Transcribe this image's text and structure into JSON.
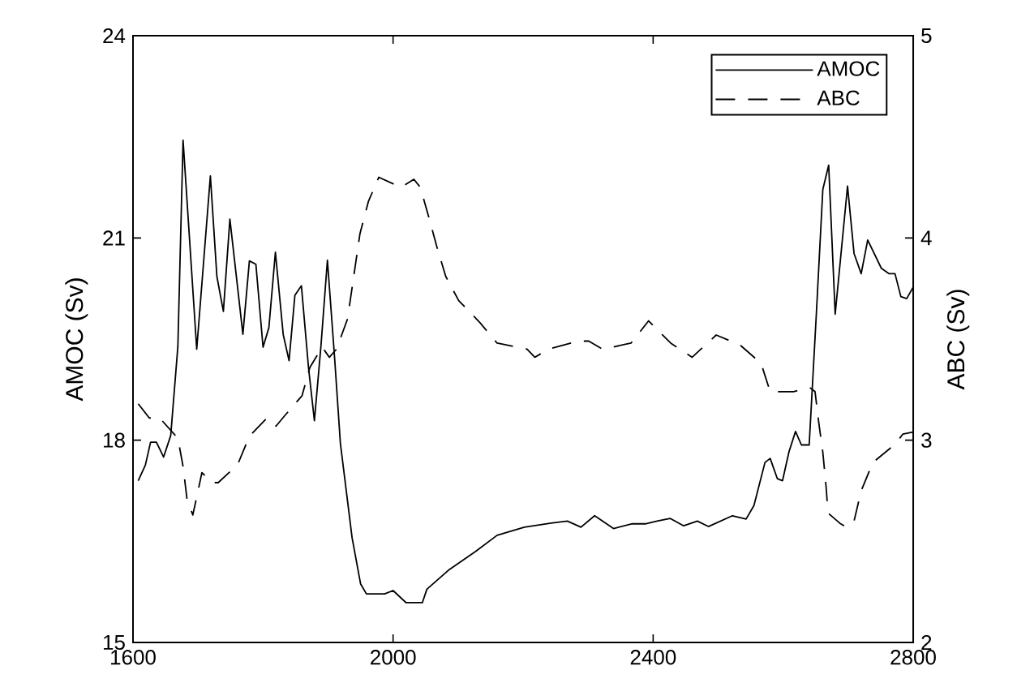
{
  "chart_data": {
    "type": "line",
    "xlabel": null,
    "ylabel": "AMOC (Sv)",
    "y2label": "ABC (Sv)",
    "xlim": [
      1600,
      2800
    ],
    "xticks": [
      1600,
      2000,
      2400,
      2800
    ],
    "ylim": [
      15,
      24
    ],
    "yticks": [
      15,
      18,
      21,
      24
    ],
    "y2lim": [
      2,
      5
    ],
    "y2ticks": [
      2,
      3,
      4,
      5
    ],
    "legend": "top right",
    "grid": false,
    "series": [
      {
        "name": "AMOC",
        "color": "#000000",
        "line_style": "solid",
        "axis": "y",
        "x": [
          1608,
          1619,
          1627,
          1636,
          1647,
          1658,
          1669,
          1677,
          1698,
          1719,
          1729,
          1739,
          1749,
          1769,
          1779,
          1789,
          1800,
          1809,
          1819,
          1831,
          1840,
          1849,
          1859,
          1870,
          1879,
          1889,
          1899,
          1910,
          1919,
          1937,
          1950,
          1959,
          1987,
          2000,
          2020,
          2045,
          2052,
          2085,
          2127,
          2160,
          2202,
          2243,
          2268,
          2289,
          2310,
          2339,
          2368,
          2389,
          2406,
          2426,
          2447,
          2468,
          2485,
          2522,
          2543,
          2555,
          2572,
          2580,
          2591,
          2599,
          2609,
          2619,
          2628,
          2640,
          2651,
          2661,
          2670,
          2680,
          2699,
          2709,
          2720,
          2730,
          2751,
          2763,
          2772,
          2781,
          2790,
          2800
        ],
        "values": [
          17.4,
          17.63,
          17.97,
          17.97,
          17.75,
          18.07,
          19.39,
          22.45,
          19.35,
          21.92,
          20.43,
          19.91,
          21.28,
          19.57,
          20.66,
          20.61,
          19.38,
          19.67,
          20.79,
          19.57,
          19.18,
          20.15,
          20.29,
          19.07,
          18.29,
          19.39,
          20.67,
          19.23,
          17.95,
          16.55,
          15.87,
          15.72,
          15.72,
          15.77,
          15.59,
          15.59,
          15.79,
          16.07,
          16.35,
          16.59,
          16.71,
          16.77,
          16.8,
          16.71,
          16.88,
          16.69,
          16.76,
          16.76,
          16.8,
          16.84,
          16.73,
          16.8,
          16.72,
          16.88,
          16.83,
          17.03,
          17.67,
          17.73,
          17.43,
          17.4,
          17.83,
          18.13,
          17.93,
          17.93,
          19.87,
          21.72,
          22.08,
          19.87,
          21.77,
          20.77,
          20.47,
          20.97,
          20.55,
          20.47,
          20.47,
          20.13,
          20.1,
          20.27
        ]
      },
      {
        "name": "ABC",
        "color": "#000000",
        "line_style": "dashed",
        "axis": "y2",
        "x": [
          1608,
          1625,
          1641,
          1669,
          1677,
          1683,
          1692,
          1706,
          1721,
          1731,
          1761,
          1779,
          1806,
          1820,
          1833,
          1860,
          1872,
          1891,
          1902,
          1913,
          1930,
          1949,
          1962,
          1978,
          2012,
          2032,
          2042,
          2056,
          2067,
          2081,
          2101,
          2134,
          2160,
          2206,
          2218,
          2239,
          2285,
          2301,
          2322,
          2366,
          2393,
          2427,
          2460,
          2497,
          2534,
          2566,
          2580,
          2616,
          2641,
          2649,
          2655,
          2661,
          2666,
          2669,
          2687,
          2697,
          2709,
          2720,
          2738,
          2772,
          2784,
          2800
        ],
        "values": [
          3.18,
          3.11,
          3.11,
          3.01,
          2.87,
          2.71,
          2.63,
          2.84,
          2.79,
          2.79,
          2.88,
          3.02,
          3.11,
          3.07,
          3.12,
          3.22,
          3.36,
          3.46,
          3.41,
          3.45,
          3.6,
          4.02,
          4.18,
          4.3,
          4.25,
          4.29,
          4.25,
          4.09,
          3.96,
          3.81,
          3.69,
          3.58,
          3.48,
          3.45,
          3.41,
          3.45,
          3.49,
          3.49,
          3.45,
          3.48,
          3.59,
          3.48,
          3.41,
          3.52,
          3.47,
          3.38,
          3.24,
          3.24,
          3.26,
          3.24,
          3.08,
          2.94,
          2.77,
          2.64,
          2.59,
          2.57,
          2.6,
          2.75,
          2.89,
          2.98,
          3.03,
          3.04
        ]
      }
    ]
  }
}
